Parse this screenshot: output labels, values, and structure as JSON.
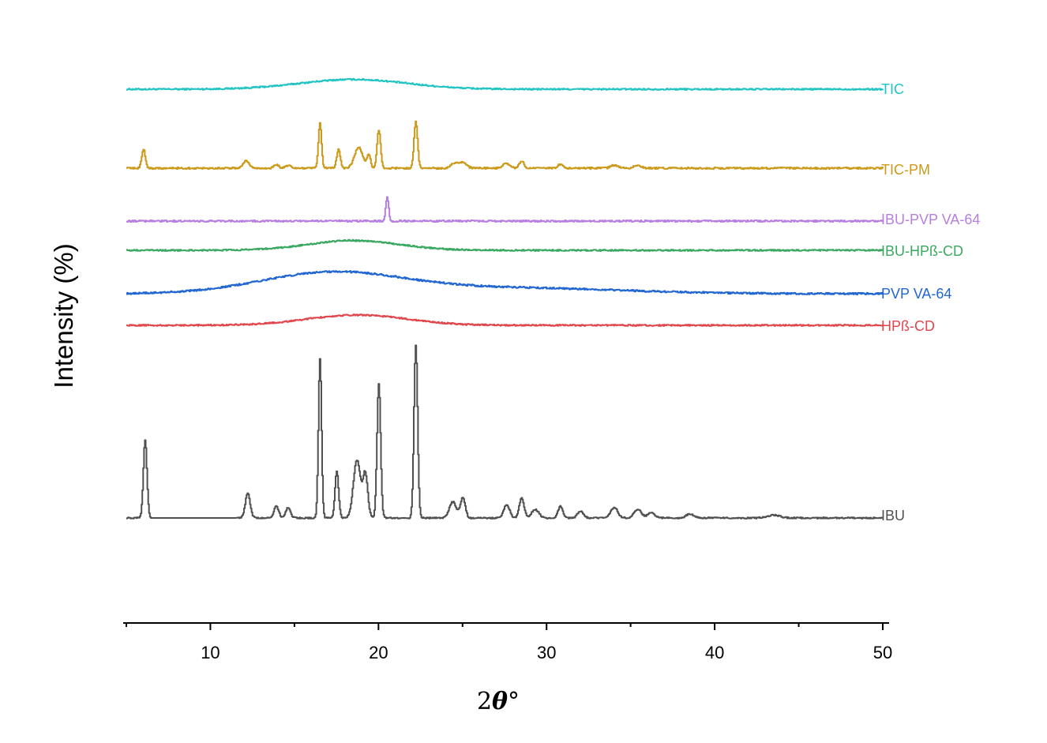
{
  "chart_data": {
    "type": "line",
    "title": "",
    "xlabel_prefix": "2",
    "xlabel_symbol": "θ",
    "xlabel_suffix": "°",
    "ylabel": "Intensity (%)",
    "xlim": [
      5,
      50
    ],
    "x_ticks": [
      10,
      20,
      30,
      40,
      50
    ],
    "x_minor_ticks": [
      5,
      15,
      25,
      35,
      45
    ],
    "y_axis_visible": false,
    "grid": false,
    "legend": "inline labels at right end of each trace",
    "series": [
      {
        "name": "TIC",
        "color": "#21c3c3",
        "baseline": 17.5,
        "noise": 0.25,
        "features": [
          {
            "type": "hump",
            "x": 18.5,
            "height": 1.7,
            "width": 4.5
          }
        ]
      },
      {
        "name": "TIC-PM",
        "color": "#cc9a1a",
        "baseline": 8.5,
        "noise": 0.3,
        "features": [
          {
            "x": 6.0,
            "height": 3.3,
            "width": 0.15
          },
          {
            "x": 12.1,
            "height": 1.3,
            "width": 0.25
          },
          {
            "x": 13.9,
            "height": 0.6,
            "width": 0.2
          },
          {
            "x": 14.6,
            "height": 0.5,
            "width": 0.2
          },
          {
            "x": 16.5,
            "height": 7.8,
            "width": 0.13
          },
          {
            "x": 17.6,
            "height": 3.2,
            "width": 0.15
          },
          {
            "x": 18.8,
            "height": 3.6,
            "width": 0.35
          },
          {
            "x": 19.4,
            "height": 2.2,
            "width": 0.15
          },
          {
            "x": 20.0,
            "height": 6.6,
            "width": 0.15
          },
          {
            "x": 22.2,
            "height": 8.0,
            "width": 0.15
          },
          {
            "x": 24.5,
            "height": 0.9,
            "width": 0.3
          },
          {
            "x": 25.0,
            "height": 1.0,
            "width": 0.3
          },
          {
            "x": 27.6,
            "height": 0.8,
            "width": 0.3
          },
          {
            "x": 28.5,
            "height": 1.2,
            "width": 0.2
          },
          {
            "x": 30.8,
            "height": 0.7,
            "width": 0.2
          },
          {
            "x": 34.0,
            "height": 0.5,
            "width": 0.3
          },
          {
            "x": 35.4,
            "height": 0.5,
            "width": 0.3
          }
        ]
      },
      {
        "name": "IBU-PVP VA-64",
        "color": "#b67fe0",
        "baseline": 0.0,
        "noise": 0.3,
        "features": [
          {
            "x": 20.5,
            "height": 4.3,
            "width": 0.12
          }
        ]
      },
      {
        "name": "IBU-HPß-CD",
        "color": "#3aa860",
        "baseline": 0.0,
        "noise": 0.25,
        "features": [
          {
            "type": "hump",
            "x": 18.5,
            "height": 1.7,
            "width": 3.8
          }
        ]
      },
      {
        "name": "PVP VA-64",
        "color": "#2166d1",
        "baseline": 0.0,
        "noise": 0.3,
        "features": [
          {
            "type": "hump",
            "x": 17.2,
            "height": 3.6,
            "width": 6.0
          },
          {
            "type": "hump",
            "x": 28.0,
            "height": 1.0,
            "width": 9.0
          }
        ]
      },
      {
        "name": "HPß-CD",
        "color": "#e0474c",
        "baseline": 0.0,
        "noise": 0.25,
        "features": [
          {
            "type": "hump",
            "x": 18.7,
            "height": 1.8,
            "width": 4.2
          }
        ]
      },
      {
        "name": "IBU",
        "color": "#505050",
        "baseline": 0.0,
        "noise": 0.25,
        "features": [
          {
            "x": 6.1,
            "height": 13.5,
            "width": 0.15
          },
          {
            "x": 12.2,
            "height": 4.3,
            "width": 0.2
          },
          {
            "x": 13.9,
            "height": 2.0,
            "width": 0.2
          },
          {
            "x": 14.6,
            "height": 1.8,
            "width": 0.2
          },
          {
            "x": 16.5,
            "height": 27.5,
            "width": 0.13
          },
          {
            "x": 17.5,
            "height": 8.2,
            "width": 0.15
          },
          {
            "x": 18.7,
            "height": 10.0,
            "width": 0.3
          },
          {
            "x": 19.2,
            "height": 7.5,
            "width": 0.2
          },
          {
            "x": 20.0,
            "height": 23.2,
            "width": 0.15
          },
          {
            "x": 22.2,
            "height": 30.0,
            "width": 0.15
          },
          {
            "x": 24.4,
            "height": 2.8,
            "width": 0.3
          },
          {
            "x": 25.0,
            "height": 3.5,
            "width": 0.2
          },
          {
            "x": 27.6,
            "height": 2.3,
            "width": 0.25
          },
          {
            "x": 28.5,
            "height": 3.5,
            "width": 0.2
          },
          {
            "x": 29.3,
            "height": 1.5,
            "width": 0.3
          },
          {
            "x": 30.8,
            "height": 2.0,
            "width": 0.2
          },
          {
            "x": 32.0,
            "height": 1.2,
            "width": 0.25
          },
          {
            "x": 34.0,
            "height": 1.8,
            "width": 0.3
          },
          {
            "x": 35.4,
            "height": 1.5,
            "width": 0.3
          },
          {
            "x": 36.2,
            "height": 0.9,
            "width": 0.3
          },
          {
            "x": 38.5,
            "height": 0.7,
            "width": 0.3
          },
          {
            "x": 43.5,
            "height": 0.5,
            "width": 0.5
          }
        ]
      }
    ]
  }
}
